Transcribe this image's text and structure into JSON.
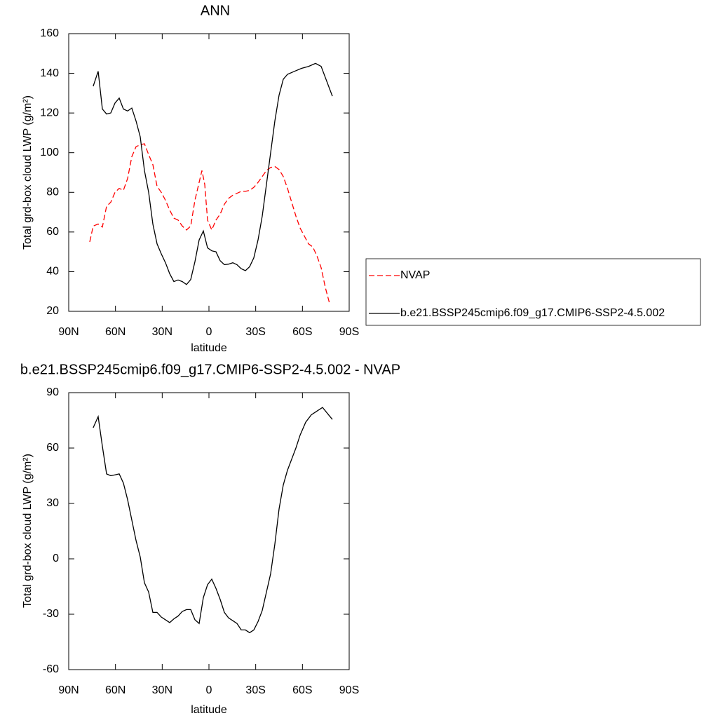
{
  "chart_data": [
    {
      "type": "line",
      "title": "ANN",
      "xlabel": "latitude",
      "ylabel": "Total grd-box cloud LWP (g/m²)",
      "xlim": [
        90,
        -90
      ],
      "xticks": [
        {
          "value": 90,
          "label": "90N"
        },
        {
          "value": 60,
          "label": "60N"
        },
        {
          "value": 30,
          "label": "30N"
        },
        0,
        {
          "value": -30,
          "label": "30S"
        },
        {
          "value": -60,
          "label": "60S"
        },
        {
          "value": -90,
          "label": "90S"
        }
      ],
      "ylim": [
        20,
        160
      ],
      "yticks": [
        20,
        40,
        60,
        80,
        100,
        120,
        140,
        160
      ],
      "legend": "right",
      "series": [
        {
          "name": "NVAP",
          "color": "#ff0000",
          "dash": true,
          "x": [
            76.5,
            74.3,
            71.1,
            68.4,
            65.7,
            63,
            60.3,
            57.6,
            54.9,
            52.2,
            49.5,
            46.8,
            44.1,
            41.4,
            38.7,
            36,
            33.3,
            30.6,
            27.9,
            25.2,
            22.5,
            19.8,
            17.1,
            14.4,
            11.7,
            9,
            6.3,
            4.5,
            2.7,
            0.9,
            -1.8,
            -4.5,
            -7.2,
            -9.9,
            -12.6,
            -15.3,
            -18,
            -20.7,
            -23.4,
            -26.1,
            -28.8,
            -31.5,
            -34.2,
            -36.9,
            -39.6,
            -42.3,
            -45,
            -47.7,
            -50.4,
            -53.1,
            -55.8,
            -58.5,
            -61.2,
            -63.9,
            -66.6,
            -69.3,
            -72,
            -74.7,
            -77.4
          ],
          "values": [
            55,
            63,
            64,
            62.5,
            73,
            75,
            80,
            82,
            81,
            87,
            98,
            103,
            104,
            104.5,
            99,
            94,
            83,
            80,
            76,
            71,
            67,
            66,
            63,
            61,
            63,
            76,
            85,
            91,
            84,
            66,
            61,
            66,
            69,
            74,
            77,
            78.5,
            79.5,
            80.5,
            80.5,
            81,
            82.5,
            85,
            88,
            91,
            92.5,
            93,
            91.5,
            88,
            82,
            75,
            68,
            62,
            58,
            54,
            52.5,
            48,
            42,
            32,
            24
          ]
        },
        {
          "name": "b.e21.BSSP245cmip6.f09_g17.CMIP6-SSP2-4.5.002",
          "color": "#000000",
          "dash": false,
          "x": [
            74.3,
            71.1,
            68.4,
            65.7,
            63,
            60.3,
            57.6,
            54.9,
            52.2,
            49.5,
            46.8,
            44.1,
            41.4,
            38.7,
            36,
            33.3,
            30.6,
            27.9,
            25.2,
            22.5,
            19.8,
            17.1,
            14.4,
            11.7,
            9,
            6.3,
            3.6,
            0.9,
            -1.8,
            -4.5,
            -7.2,
            -9.9,
            -12.6,
            -15.3,
            -18,
            -20.7,
            -23.4,
            -26.1,
            -28.8,
            -31.5,
            -34.2,
            -36.9,
            -39.6,
            -42.3,
            -45,
            -47.7,
            -50.4,
            -54.9,
            -59.4,
            -63.9,
            -68.4,
            -72,
            -79.2
          ],
          "values": [
            133.5,
            141,
            122,
            119.5,
            120,
            125,
            127.5,
            122,
            121,
            122.5,
            116,
            108,
            91,
            80,
            64,
            54,
            49,
            44.5,
            39,
            35,
            35.8,
            35,
            33.5,
            36,
            45,
            56,
            60.5,
            52,
            50.5,
            50,
            45.5,
            43.5,
            43.8,
            44.5,
            43.5,
            41.5,
            40.5,
            42.5,
            47,
            56,
            68,
            84,
            100,
            116,
            129,
            137,
            139.5,
            141,
            142.5,
            143.5,
            145,
            143.5,
            128.5
          ]
        }
      ]
    },
    {
      "type": "line",
      "title": "b.e21.BSSP245cmip6.f09_g17.CMIP6-SSP2-4.5.002 - NVAP",
      "xlabel": "latitude",
      "ylabel": "Total grd-box cloud LWP (g/m²)",
      "xlim": [
        90,
        -90
      ],
      "xticks": [
        {
          "value": 90,
          "label": "90N"
        },
        {
          "value": 60,
          "label": "60N"
        },
        {
          "value": 30,
          "label": "30N"
        },
        0,
        {
          "value": -30,
          "label": "30S"
        },
        {
          "value": -60,
          "label": "60S"
        },
        {
          "value": -90,
          "label": "90S"
        }
      ],
      "ylim": [
        -60,
        90
      ],
      "yticks": [
        -60,
        -30,
        0,
        30,
        60,
        90
      ],
      "series": [
        {
          "color": "#000000",
          "dash": false,
          "x": [
            74.3,
            71.1,
            68.4,
            65.7,
            63,
            60.3,
            57.6,
            54.9,
            52.2,
            49.5,
            46.8,
            44.1,
            41.4,
            38.7,
            36,
            33.3,
            30.6,
            27.9,
            25.2,
            22.5,
            19.8,
            17.1,
            14.4,
            11.7,
            9,
            6.3,
            3.6,
            0.9,
            -1.8,
            -4.5,
            -7.2,
            -9.9,
            -12.6,
            -15.3,
            -18,
            -20.7,
            -23.4,
            -26.1,
            -28.8,
            -31.5,
            -34.2,
            -36.9,
            -39.6,
            -42.3,
            -45,
            -47.7,
            -50.4,
            -53.1,
            -55.8,
            -58.5,
            -62.1,
            -65.7,
            -69.3,
            -72.9,
            -79.2
          ],
          "values": [
            71,
            77,
            61,
            46,
            45,
            45.5,
            46,
            41,
            32,
            21,
            10,
            1,
            -13,
            -18,
            -29,
            -29,
            -31.5,
            -33,
            -34.5,
            -32.5,
            -31,
            -28.5,
            -27.5,
            -27.5,
            -33,
            -35,
            -21,
            -14,
            -11,
            -16,
            -22,
            -29,
            -32,
            -33.5,
            -35,
            -38.5,
            -38.5,
            -40,
            -38.5,
            -34,
            -28,
            -18,
            -8,
            8,
            27,
            40,
            48,
            54,
            60,
            67,
            74,
            78,
            80,
            82,
            75.5
          ]
        }
      ]
    }
  ]
}
